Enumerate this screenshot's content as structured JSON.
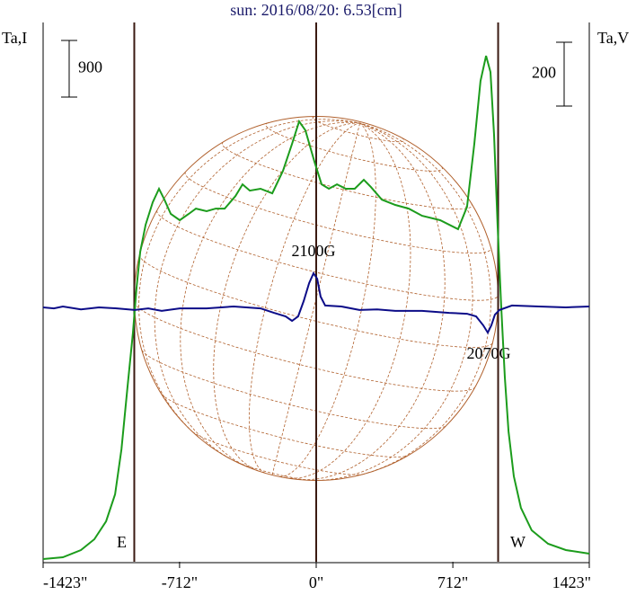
{
  "chart_data": {
    "type": "line",
    "title": "sun: 2016/08/20: 6.53[cm]",
    "ylabel": "Ta,I",
    "y2label": "Ta,V",
    "scale_bar": 900,
    "scale_bar2": 200,
    "xlim": [
      -1423,
      1423
    ],
    "xticks": [
      {
        "value": -1423,
        "label": "-1423\""
      },
      {
        "value": -712,
        "label": "-712\""
      },
      {
        "value": 0,
        "label": "0\""
      },
      {
        "value": 712,
        "label": "712\""
      },
      {
        "value": 1423,
        "label": "1423\""
      }
    ],
    "ylim": [
      -43,
      8530
    ],
    "y2lim": [
      -797,
      893
    ],
    "limbs": [
      {
        "label": "E",
        "value": -948
      },
      {
        "label": "W",
        "value": 948
      }
    ],
    "annotations": [
      "2100G",
      "2070G"
    ],
    "series": [
      {
        "name": "I",
        "color": "#1c9c1c",
        "x": [
          -1423,
          -1320,
          -1226,
          -1156,
          -1095,
          -1048,
          -1015,
          -983,
          -955,
          -936,
          -917,
          -889,
          -852,
          -819,
          -791,
          -758,
          -711,
          -664,
          -627,
          -571,
          -524,
          -477,
          -421,
          -384,
          -346,
          -290,
          -229,
          -173,
          -126,
          -89,
          -56,
          -9,
          28,
          66,
          108,
          154,
          201,
          248,
          285,
          342,
          412,
          482,
          552,
          646,
          739,
          786,
          824,
          856,
          885,
          908,
          927,
          945,
          964,
          983,
          1002,
          1030,
          1067,
          1123,
          1208,
          1301,
          1423
        ],
        "values": [
          0,
          29,
          143,
          314,
          600,
          1029,
          1743,
          2743,
          3600,
          4314,
          4886,
          5314,
          5671,
          5886,
          5714,
          5486,
          5386,
          5486,
          5571,
          5529,
          5571,
          5571,
          5771,
          5957,
          5857,
          5886,
          5814,
          6171,
          6600,
          6957,
          6814,
          6314,
          5957,
          5886,
          5957,
          5886,
          5886,
          6029,
          5914,
          5714,
          5629,
          5571,
          5457,
          5386,
          5243,
          5600,
          6600,
          7600,
          8000,
          7743,
          6743,
          5314,
          4029,
          2886,
          2029,
          1314,
          814,
          457,
          243,
          143,
          86
        ]
      },
      {
        "name": "V",
        "color": "#0c0c88",
        "axis": "y2",
        "x": [
          -1423,
          -1367,
          -1320,
          -1226,
          -1132,
          -1039,
          -945,
          -875,
          -805,
          -711,
          -571,
          -430,
          -290,
          -220,
          -159,
          -126,
          -94,
          -65,
          -37,
          -14,
          5,
          23,
          47,
          131,
          225,
          318,
          412,
          552,
          693,
          786,
          833,
          870,
          894,
          913,
          931,
          955,
          1020,
          1161,
          1301,
          1423
        ],
        "values": [
          0,
          -3,
          3,
          -6,
          0,
          -3,
          -8,
          -3,
          -11,
          -3,
          -3,
          3,
          -3,
          -17,
          -28,
          -42,
          -28,
          20,
          76,
          107,
          90,
          34,
          6,
          3,
          -8,
          -6,
          -11,
          -11,
          -17,
          -20,
          -28,
          -56,
          -79,
          -56,
          -23,
          -8,
          6,
          3,
          0,
          3
        ]
      }
    ]
  }
}
